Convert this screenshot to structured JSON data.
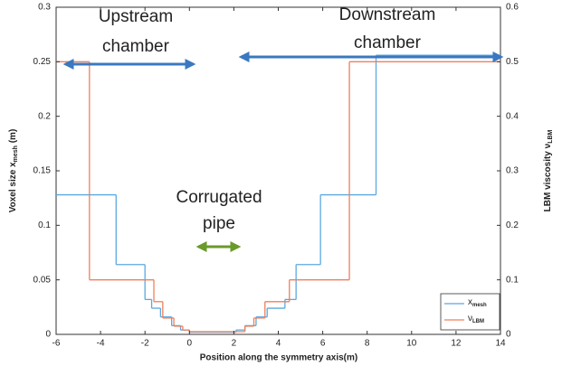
{
  "chart_data": {
    "type": "step",
    "xlabel": "Position along the symmetry axis(m)",
    "ylabel": [
      "Voxel size x",
      "mesh",
      " (m)"
    ],
    "y2label": [
      "LBM viscosity ν",
      "LBM"
    ],
    "xlim": [
      -6,
      14
    ],
    "xticks": [
      -6,
      -4,
      -2,
      0,
      2,
      4,
      6,
      8,
      10,
      12,
      14
    ],
    "ylim": [
      0,
      0.3
    ],
    "yticks": [
      0,
      0.05,
      0.1,
      0.15,
      0.2,
      0.25,
      0.3
    ],
    "y2lim": [
      0,
      0.6
    ],
    "y2ticks": [
      0,
      0.1,
      0.2,
      0.3,
      0.4,
      0.5,
      0.6
    ],
    "series": [
      {
        "name": [
          "x",
          "mesh"
        ],
        "color": "#5ba8e0",
        "x_edges": [
          -6,
          -3.3,
          -2,
          -1.7,
          -1.3,
          -0.8,
          -0.4,
          0,
          2.1,
          2.5,
          3,
          3.5,
          4.3,
          4.8,
          5.9,
          8.4,
          14
        ],
        "values": [
          0.128,
          0.064,
          0.032,
          0.024,
          0.016,
          0.008,
          0.004,
          0.002,
          0.004,
          0.008,
          0.016,
          0.024,
          0.032,
          0.064,
          0.128,
          0.256
        ]
      },
      {
        "name": [
          "ν",
          "LBM"
        ],
        "color": "#f07f5a",
        "axis": "y2",
        "x_edges": [
          -6,
          -4.5,
          -1.6,
          -1.2,
          -0.7,
          -0.3,
          0,
          2.5,
          2.9,
          3.4,
          4.5,
          7.2,
          14
        ],
        "values": [
          0.5,
          0.1,
          0.06,
          0.03,
          0.015,
          0.008,
          0.005,
          0.015,
          0.03,
          0.06,
          0.1,
          0.5
        ]
      }
    ],
    "annotations": [
      {
        "lines": [
          "Upstream",
          "chamber"
        ],
        "color": "#4a8fd4"
      },
      {
        "lines": [
          "Downstream",
          "chamber"
        ],
        "color": "#4a8fd4"
      },
      {
        "lines": [
          "Corrugated",
          "pipe"
        ],
        "color": "#6a9a2a"
      }
    ]
  }
}
